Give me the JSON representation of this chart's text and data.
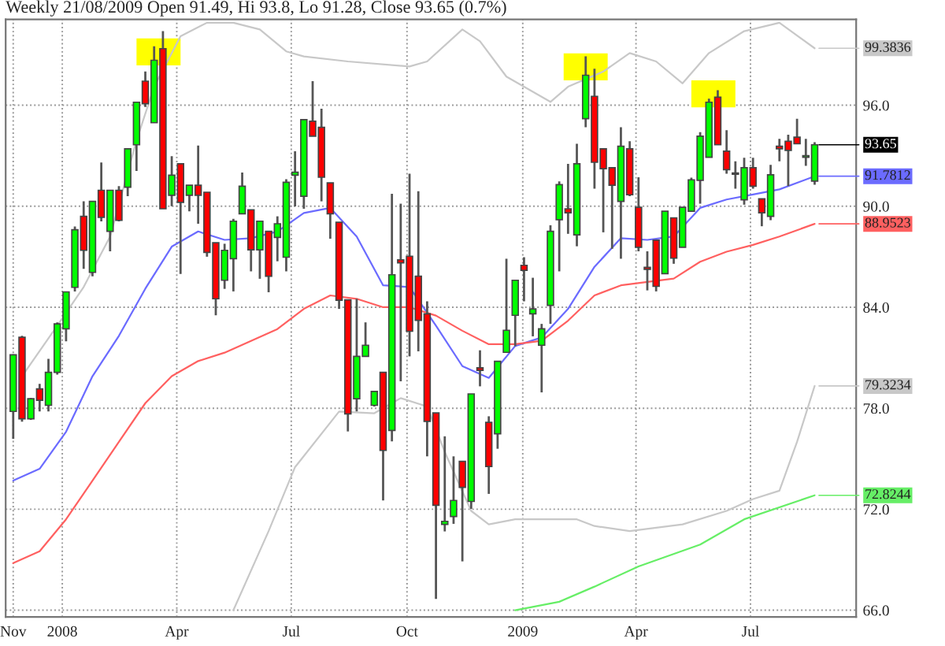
{
  "chart_data": {
    "type": "candlestick",
    "title": "Weekly 21/08/2009 Open 91.49, Hi 93.8, Lo 91.28, Close 93.65 (0.7%)",
    "x": [
      "2007-11-23",
      "2007-11-30",
      "2007-12-07",
      "2007-12-14",
      "2007-12-21",
      "2007-12-28",
      "2008-01-04",
      "2008-01-11",
      "2008-01-18",
      "2008-01-25",
      "2008-02-01",
      "2008-02-08",
      "2008-02-15",
      "2008-02-22",
      "2008-02-29",
      "2008-03-07",
      "2008-03-14",
      "2008-03-21",
      "2008-03-28",
      "2008-04-04",
      "2008-04-11",
      "2008-04-18",
      "2008-04-25",
      "2008-05-02",
      "2008-05-09",
      "2008-05-16",
      "2008-05-23",
      "2008-05-30",
      "2008-06-06",
      "2008-06-13",
      "2008-06-20",
      "2008-06-27",
      "2008-07-04",
      "2008-07-11",
      "2008-07-18",
      "2008-07-25",
      "2008-08-01",
      "2008-08-08",
      "2008-08-15",
      "2008-08-22",
      "2008-08-29",
      "2008-09-05",
      "2008-09-12",
      "2008-09-19",
      "2008-09-26",
      "2008-10-03",
      "2008-10-10",
      "2008-10-17",
      "2008-10-24",
      "2008-10-31",
      "2008-11-07",
      "2008-11-14",
      "2008-11-21",
      "2008-11-28",
      "2008-12-05",
      "2008-12-12",
      "2008-12-19",
      "2008-12-26",
      "2009-01-02",
      "2009-01-09",
      "2009-01-16",
      "2009-01-23",
      "2009-01-30",
      "2009-02-06",
      "2009-02-13",
      "2009-02-20",
      "2009-02-27",
      "2009-03-06",
      "2009-03-13",
      "2009-03-20",
      "2009-03-27",
      "2009-04-03",
      "2009-04-10",
      "2009-04-17",
      "2009-04-24",
      "2009-05-01",
      "2009-05-08",
      "2009-05-15",
      "2009-05-22",
      "2009-05-29",
      "2009-06-05",
      "2009-06-12",
      "2009-06-19",
      "2009-06-26",
      "2009-07-03",
      "2009-07-10",
      "2009-07-17",
      "2009-07-24",
      "2009-07-31",
      "2009-08-07",
      "2009-08-14",
      "2009-08-21"
    ],
    "ohlc": [
      [
        77.81,
        81.2,
        76.18,
        81.17
      ],
      [
        82.21,
        82.3,
        77.2,
        77.37
      ],
      [
        77.37,
        78.6,
        77.3,
        78.56
      ],
      [
        79.15,
        79.45,
        77.81,
        78.47
      ],
      [
        78.17,
        80.93,
        77.81,
        80.13
      ],
      [
        80.13,
        83.1,
        80.0,
        83.01
      ],
      [
        82.72,
        84.91,
        81.97,
        84.91
      ],
      [
        85.18,
        88.8,
        84.94,
        88.6
      ],
      [
        89.4,
        90.29,
        86.28,
        87.38
      ],
      [
        86.07,
        90.3,
        85.84,
        90.29
      ],
      [
        90.95,
        92.6,
        89.1,
        89.34
      ],
      [
        88.51,
        90.95,
        87.32,
        90.95
      ],
      [
        90.95,
        91.2,
        89.1,
        89.16
      ],
      [
        91.13,
        93.41,
        90.6,
        93.41
      ],
      [
        93.65,
        96.2,
        92.1,
        96.18
      ],
      [
        97.43,
        98.0,
        95.9,
        96.09
      ],
      [
        94.96,
        99.5,
        94.96,
        98.67
      ],
      [
        99.36,
        100.4,
        89.85,
        89.85
      ],
      [
        90.65,
        92.97,
        90.0,
        91.84
      ],
      [
        92.52,
        92.52,
        85.98,
        90.23
      ],
      [
        90.65,
        91.25,
        89.7,
        91.25
      ],
      [
        91.25,
        93.6,
        88.96,
        90.65
      ],
      [
        90.83,
        90.83,
        87.0,
        87.26
      ],
      [
        87.83,
        87.83,
        83.52,
        84.5
      ],
      [
        85.6,
        87.77,
        85.09,
        87.38
      ],
      [
        86.88,
        89.25,
        84.94,
        89.11
      ],
      [
        89.55,
        92.0,
        89.55,
        91.19
      ],
      [
        89.79,
        89.8,
        86.13,
        87.41
      ],
      [
        87.41,
        89.11,
        85.69,
        89.11
      ],
      [
        88.51,
        88.51,
        84.89,
        85.84
      ],
      [
        88.15,
        89.4,
        86.73,
        88.96
      ],
      [
        86.97,
        91.6,
        86.13,
        91.42
      ],
      [
        91.84,
        93.27,
        89.99,
        92.02
      ],
      [
        90.59,
        95.14,
        89.85,
        95.14
      ],
      [
        95.05,
        97.43,
        94.16,
        94.16
      ],
      [
        94.69,
        95.79,
        90.29,
        91.72
      ],
      [
        91.39,
        91.39,
        88.07,
        89.55
      ],
      [
        89.05,
        89.05,
        83.9,
        84.41
      ],
      [
        84.44,
        84.44,
        76.62,
        77.66
      ],
      [
        78.56,
        84.5,
        77.81,
        81.08
      ],
      [
        81.08,
        83.1,
        81.08,
        81.74
      ],
      [
        78.17,
        79.0,
        78.1,
        79.0
      ],
      [
        80.13,
        80.13,
        72.52,
        75.49
      ],
      [
        76.68,
        90.74,
        76.03,
        85.93
      ],
      [
        86.82,
        90.15,
        79.6,
        86.64
      ],
      [
        87.03,
        91.93,
        81.08,
        82.57
      ],
      [
        85.84,
        90.89,
        81.38,
        83.22
      ],
      [
        83.61,
        84.35,
        75.14,
        77.22
      ],
      [
        77.72,
        77.72,
        66.67,
        72.23
      ],
      [
        71.1,
        76.33,
        70.68,
        71.28
      ],
      [
        71.57,
        75.14,
        71.13,
        72.52
      ],
      [
        74.84,
        74.84,
        68.9,
        73.3
      ],
      [
        72.46,
        78.85,
        72.02,
        78.85
      ],
      [
        80.4,
        81.44,
        79.3,
        80.25
      ],
      [
        77.16,
        77.52,
        72.91,
        74.54
      ],
      [
        76.48,
        80.79,
        75.59,
        80.79
      ],
      [
        81.32,
        86.88,
        81.32,
        82.63
      ],
      [
        83.52,
        85.6,
        81.68,
        85.6
      ],
      [
        86.49,
        86.97,
        84.35,
        86.19
      ],
      [
        83.61,
        85.75,
        82.27,
        83.9
      ],
      [
        81.74,
        83.01,
        78.94,
        82.72
      ],
      [
        84.11,
        88.87,
        83.01,
        88.51
      ],
      [
        89.2,
        91.48,
        86.13,
        91.28
      ],
      [
        89.85,
        92.52,
        88.36,
        89.61
      ],
      [
        88.3,
        93.71,
        87.62,
        92.52
      ],
      [
        95.2,
        98.91,
        94.69,
        97.78
      ],
      [
        96.53,
        98.17,
        91.04,
        92.61
      ],
      [
        93.41,
        93.41,
        88.45,
        92.23
      ],
      [
        92.29,
        92.29,
        87.47,
        91.25
      ],
      [
        90.29,
        94.69,
        86.88,
        93.56
      ],
      [
        93.41,
        93.86,
        90.6,
        90.68
      ],
      [
        89.94,
        91.72,
        87.32,
        87.56
      ],
      [
        86.37,
        87.32,
        85.0,
        86.25
      ],
      [
        87.98,
        87.98,
        84.94,
        85.24
      ],
      [
        85.99,
        89.7,
        85.99,
        89.7
      ],
      [
        89.31,
        89.31,
        86.58,
        86.91
      ],
      [
        87.56,
        89.94,
        87.56,
        89.94
      ],
      [
        89.7,
        91.7,
        89.7,
        91.57
      ],
      [
        91.54,
        94.4,
        90.15,
        94.16
      ],
      [
        92.91,
        96.39,
        92.91,
        96.18
      ],
      [
        96.48,
        96.89,
        93.65,
        93.65
      ],
      [
        93.27,
        94.52,
        91.93,
        92.17
      ],
      [
        91.96,
        92.67,
        91.04,
        91.9
      ],
      [
        90.38,
        92.88,
        90.09,
        92.29
      ],
      [
        92.29,
        92.88,
        91.04,
        91.19
      ],
      [
        90.44,
        90.44,
        88.81,
        89.61
      ],
      [
        89.4,
        92.46,
        89.17,
        91.87
      ],
      [
        93.56,
        94.0,
        92.67,
        93.41
      ],
      [
        93.86,
        94.25,
        91.19,
        93.32
      ],
      [
        94.1,
        95.2,
        93.71,
        93.71
      ],
      [
        92.91,
        94.0,
        92.4,
        93.0
      ],
      [
        91.49,
        93.8,
        91.28,
        93.65
      ]
    ],
    "series": [
      {
        "type": "line",
        "color": "#c8c8c8",
        "x": [
          "2007-11-30",
          "2007-12-28",
          "2008-01-18",
          "2008-02-08",
          "2008-02-29",
          "2008-03-14",
          "2008-04-04",
          "2008-04-25",
          "2008-05-16",
          "2008-06-06",
          "2008-06-27",
          "2008-07-11",
          "2008-08-15",
          "2008-10-03",
          "2008-10-17",
          "2008-11-14",
          "2008-11-28",
          "2008-12-19",
          "2009-01-23",
          "2009-02-06",
          "2009-03-06",
          "2009-03-27",
          "2009-04-17",
          "2009-05-08",
          "2009-05-29",
          "2009-06-26",
          "2009-07-24",
          "2009-08-21"
        ],
        "values": [
          79.9,
          82.9,
          85.2,
          88.2,
          93.9,
          97.1,
          100.1,
          100.9,
          100.9,
          100.5,
          99.2,
          98.9,
          98.6,
          98.3,
          98.6,
          100.5,
          99.8,
          97.7,
          96.2,
          97.1,
          98.0,
          99.1,
          98.6,
          97.3,
          99.1,
          100.4,
          100.9,
          99.3836
        ],
        "value_labels": [
          null,
          null,
          null,
          null,
          null,
          null,
          null,
          null,
          null,
          null,
          null,
          null,
          null,
          null,
          null,
          null,
          null,
          null,
          null,
          null,
          null,
          null,
          null,
          null,
          null,
          null,
          null,
          "99.3836"
        ]
      },
      {
        "type": "line",
        "color": "#c8c8c8",
        "x": [
          "2008-05-16",
          "2008-06-13",
          "2008-07-04",
          "2008-08-08",
          "2008-09-05",
          "2008-09-26",
          "2008-10-17",
          "2008-10-31",
          "2008-11-21",
          "2008-12-05",
          "2008-12-26",
          "2009-02-13",
          "2009-02-27",
          "2009-03-27",
          "2009-05-08",
          "2009-06-12",
          "2009-07-03",
          "2009-07-24",
          "2009-08-07",
          "2009-08-21"
        ],
        "values": [
          66.0,
          70.7,
          74.5,
          77.8,
          77.7,
          78.6,
          78.1,
          75.4,
          71.9,
          71.1,
          71.4,
          71.4,
          71.0,
          70.7,
          71.1,
          71.9,
          72.6,
          73.1,
          76.0,
          79.3234
        ],
        "value_labels": [
          null,
          null,
          null,
          null,
          null,
          null,
          null,
          null,
          null,
          null,
          null,
          null,
          null,
          null,
          null,
          null,
          null,
          null,
          null,
          "79.3234"
        ]
      },
      {
        "type": "line",
        "color": "#6b6bff",
        "x": [
          "2007-11-23",
          "2007-12-14",
          "2008-01-04",
          "2008-01-25",
          "2008-02-15",
          "2008-03-07",
          "2008-03-28",
          "2008-04-18",
          "2008-05-09",
          "2008-05-30",
          "2008-06-20",
          "2008-07-11",
          "2008-08-01",
          "2008-08-22",
          "2008-09-12",
          "2008-10-03",
          "2008-10-24",
          "2008-11-14",
          "2008-12-05",
          "2008-12-26",
          "2009-01-16",
          "2009-02-06",
          "2009-02-27",
          "2009-03-20",
          "2009-04-10",
          "2009-05-01",
          "2009-05-22",
          "2009-06-12",
          "2009-07-03",
          "2009-07-24",
          "2009-08-21"
        ],
        "values": [
          73.7,
          74.4,
          76.6,
          79.9,
          82.3,
          85.1,
          87.6,
          88.5,
          88.0,
          88.1,
          88.5,
          89.6,
          89.9,
          88.2,
          85.3,
          85.2,
          82.9,
          80.5,
          79.8,
          81.7,
          82.2,
          83.9,
          86.4,
          88.1,
          88.0,
          88.2,
          89.9,
          90.4,
          90.7,
          91.0,
          91.7812
        ],
        "value_labels": [
          null,
          null,
          null,
          null,
          null,
          null,
          null,
          null,
          null,
          null,
          null,
          null,
          null,
          null,
          null,
          null,
          null,
          null,
          null,
          null,
          null,
          null,
          null,
          null,
          null,
          null,
          null,
          null,
          null,
          null,
          "91.7812"
        ]
      },
      {
        "type": "line",
        "color": "#ff6060",
        "x": [
          "2007-11-23",
          "2007-12-14",
          "2008-01-04",
          "2008-01-25",
          "2008-02-15",
          "2008-03-07",
          "2008-03-28",
          "2008-04-18",
          "2008-05-09",
          "2008-05-30",
          "2008-06-20",
          "2008-07-11",
          "2008-08-01",
          "2008-08-22",
          "2008-09-12",
          "2008-10-03",
          "2008-10-24",
          "2008-11-14",
          "2008-12-05",
          "2008-12-26",
          "2009-01-16",
          "2009-02-06",
          "2009-02-27",
          "2009-03-20",
          "2009-04-10",
          "2009-05-01",
          "2009-05-22",
          "2009-06-12",
          "2009-07-03",
          "2009-07-24",
          "2009-08-21"
        ],
        "values": [
          68.8,
          69.5,
          71.4,
          73.7,
          76.0,
          78.3,
          79.9,
          80.8,
          81.3,
          82.0,
          82.7,
          83.9,
          84.7,
          84.5,
          84.0,
          84.0,
          83.5,
          82.6,
          81.8,
          81.8,
          82.0,
          83.2,
          84.7,
          85.3,
          85.5,
          85.7,
          86.7,
          87.3,
          87.7,
          88.2,
          88.9523
        ],
        "value_labels": [
          null,
          null,
          null,
          null,
          null,
          null,
          null,
          null,
          null,
          null,
          null,
          null,
          null,
          null,
          null,
          null,
          null,
          null,
          null,
          null,
          null,
          null,
          null,
          null,
          null,
          null,
          null,
          null,
          null,
          null,
          "88.9523"
        ]
      },
      {
        "type": "line",
        "color": "#66ee66",
        "x": [
          "2008-12-26",
          "2009-01-30",
          "2009-02-27",
          "2009-04-03",
          "2009-05-22",
          "2009-06-26",
          "2009-08-21"
        ],
        "values": [
          66.0,
          66.5,
          67.4,
          68.6,
          69.9,
          71.4,
          72.8244
        ],
        "value_labels": [
          null,
          null,
          null,
          null,
          null,
          null,
          "72.8244"
        ]
      }
    ],
    "annotations": [
      {
        "text": "93.65",
        "x": "2009-08-21",
        "y": 93.65
      }
    ],
    "xlim": [
      "2007-11-17",
      "2009-09-23"
    ],
    "xticks": [
      {
        "value": "2007-11-23",
        "label": "Nov"
      },
      {
        "value": "2008-01-01",
        "label": "2008"
      },
      {
        "value": "2008-04-01",
        "label": "Apr"
      },
      {
        "value": "2008-07-01",
        "label": "Jul"
      },
      {
        "value": "2008-10-01",
        "label": "Oct"
      },
      {
        "value": "2009-01-01",
        "label": "2009"
      },
      {
        "value": "2009-04-01",
        "label": "Apr"
      },
      {
        "value": "2009-07-01",
        "label": "Jul"
      }
    ],
    "ylim": [
      65.6,
      101.1
    ],
    "yticks": [
      {
        "value": 66,
        "label": "66.0"
      },
      {
        "value": 72,
        "label": "72.0"
      },
      {
        "value": 78,
        "label": "78.0"
      },
      {
        "value": 84,
        "label": "84.0"
      },
      {
        "value": 90,
        "label": "90.0"
      },
      {
        "value": 96,
        "label": "96.0"
      }
    ],
    "grid": true,
    "marker": "none",
    "line_style": "solid"
  }
}
